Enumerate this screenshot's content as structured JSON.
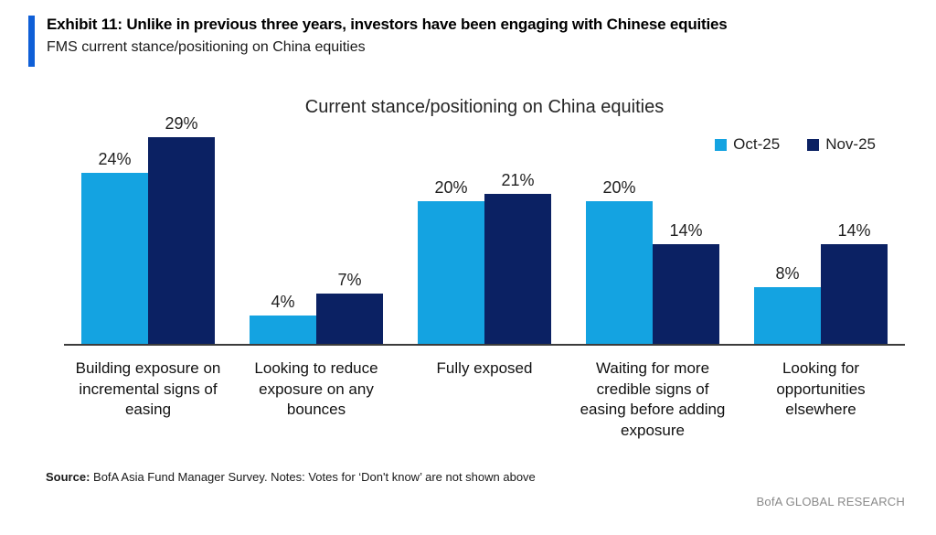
{
  "exhibit": {
    "title": "Exhibit 11: Unlike in previous three years, investors have been engaging with Chinese equities",
    "subtitle": "FMS current stance/positioning on China equities",
    "accent_color": "#0f5fd7"
  },
  "chart_data": {
    "type": "bar",
    "title": "Current stance/positioning on China equities",
    "categories": [
      "Building exposure on incremental signs of easing",
      "Looking to reduce exposure on any bounces",
      "Fully exposed",
      "Waiting for more credible signs of easing before adding exposure",
      "Looking for opportunities elsewhere"
    ],
    "series": [
      {
        "name": "Oct-25",
        "color": "#14a3e1",
        "values": [
          24,
          4,
          20,
          20,
          8
        ]
      },
      {
        "name": "Nov-25",
        "color": "#0b2163",
        "values": [
          29,
          7,
          21,
          14,
          14
        ]
      }
    ],
    "value_label_suffix": "%",
    "ylim": [
      0,
      32
    ],
    "grid": false,
    "legend_position": "top-right",
    "axis_line_color": "#3c3c3c"
  },
  "footer": {
    "source_label": "Source:",
    "source": "BofA Asia Fund Manager Survey. Notes: Votes for ‘Don't know’ are not shown above",
    "brand": "BofA GLOBAL RESEARCH"
  }
}
